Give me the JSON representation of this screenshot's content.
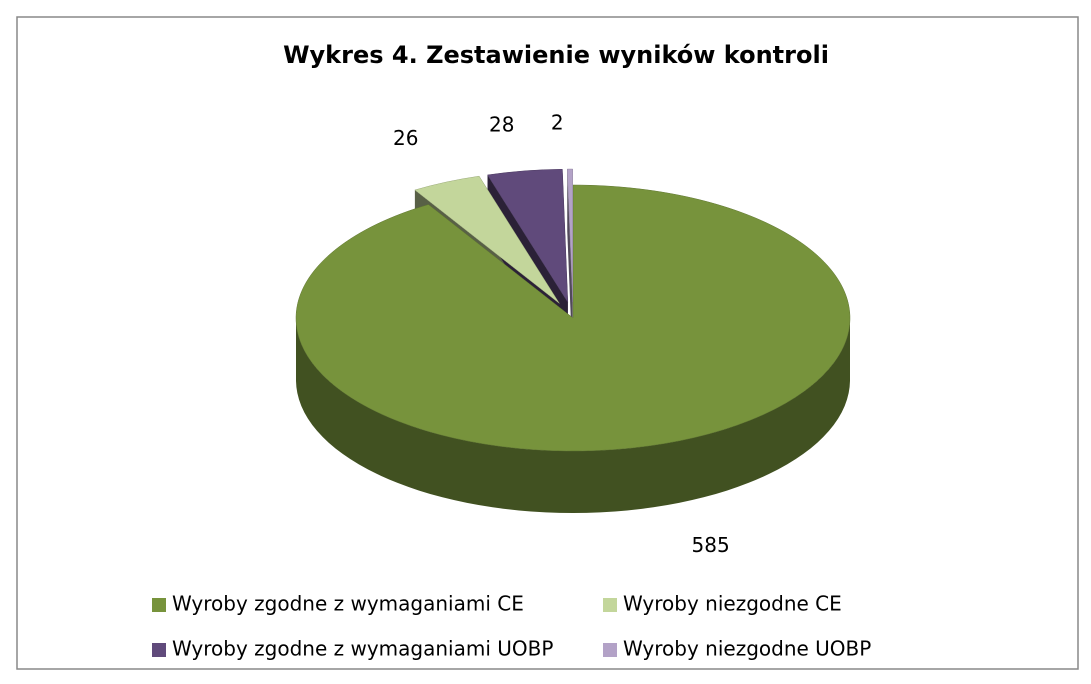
{
  "chart_data": {
    "type": "pie",
    "title": "Wykres 4. Zestawienie wyników kontroli",
    "categories": [
      "Wyroby zgodne z wymaganiami CE",
      "Wyroby niezgodne CE",
      "Wyroby zgodne z wymaganiami UOBP",
      "Wyroby niezgodne UOBP"
    ],
    "values": [
      585,
      26,
      28,
      2
    ],
    "colors": [
      "#77933c",
      "#c3d69b",
      "#604a7b",
      "#b3a2c7"
    ],
    "legend": "bottom"
  }
}
